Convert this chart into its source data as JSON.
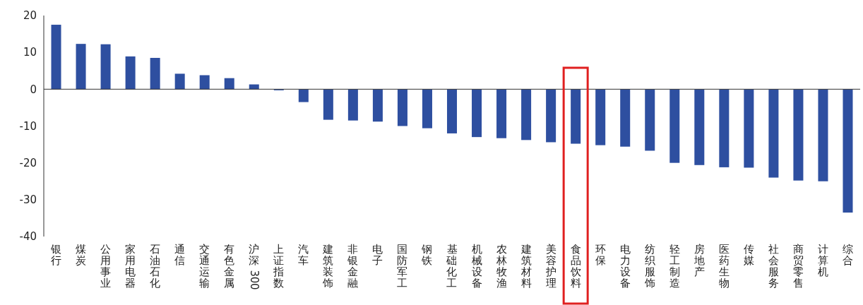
{
  "chart_data": {
    "type": "bar",
    "categories": [
      "银行",
      "煤炭",
      "公用事业",
      "家用电器",
      "石油石化",
      "通信",
      "交通运输",
      "有色金属",
      "沪深300",
      "上证指数",
      "汽车",
      "建筑装饰",
      "非银金融",
      "电子",
      "国防军工",
      "钢铁",
      "基础化工",
      "机械设备",
      "农林牧渔",
      "建筑材料",
      "美容护理",
      "食品饮料",
      "环保",
      "电力设备",
      "纺织服饰",
      "轻工制造",
      "房地产",
      "医药生物",
      "传媒",
      "社会服务",
      "商贸零售",
      "计算机",
      "综合"
    ],
    "values": [
      17.5,
      12.3,
      12.2,
      8.9,
      8.5,
      4.2,
      3.8,
      3,
      1.3,
      -0.3,
      -3.5,
      -8.3,
      -8.5,
      -8.8,
      -10,
      -10.6,
      -12,
      -13,
      -13.3,
      -13.8,
      -14.4,
      -14.8,
      -15.2,
      -15.6,
      -16.7,
      -20,
      -20.6,
      -21.2,
      -21.3,
      -24,
      -24.8,
      -25,
      -33.5
    ],
    "color": "#2e4fa0",
    "ylim": [
      -40,
      20
    ],
    "yticks": [
      -40,
      -30,
      -20,
      -10,
      0,
      10,
      20
    ]
  }
}
